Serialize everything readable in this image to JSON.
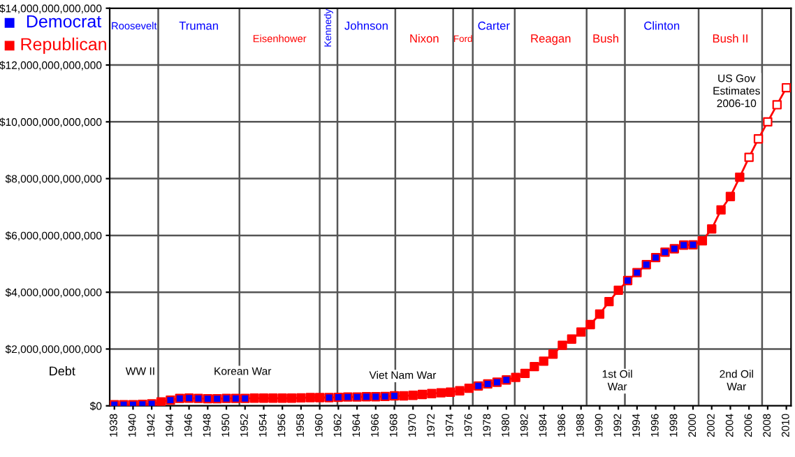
{
  "chart_data": {
    "type": "line",
    "ylabel": "Debt",
    "x": [
      1938,
      1939,
      1940,
      1941,
      1942,
      1943,
      1944,
      1945,
      1946,
      1947,
      1948,
      1949,
      1950,
      1951,
      1952,
      1953,
      1954,
      1955,
      1956,
      1957,
      1958,
      1959,
      1960,
      1961,
      1962,
      1963,
      1964,
      1965,
      1966,
      1967,
      1968,
      1969,
      1970,
      1971,
      1972,
      1973,
      1974,
      1975,
      1976,
      1977,
      1978,
      1979,
      1980,
      1981,
      1982,
      1983,
      1984,
      1985,
      1986,
      1987,
      1988,
      1989,
      1990,
      1991,
      1992,
      1993,
      1994,
      1995,
      1996,
      1997,
      1998,
      1999,
      2000,
      2001,
      2002,
      2003,
      2004,
      2005,
      2006,
      2007,
      2008,
      2009,
      2010
    ],
    "series": [
      {
        "color": "#ff0000",
        "marker": "none",
        "values": [
          40000000000,
          40000000000,
          40000000000,
          50000000000,
          70000000000,
          140000000000,
          200000000000,
          260000000000,
          270000000000,
          260000000000,
          250000000000,
          250000000000,
          260000000000,
          260000000000,
          260000000000,
          270000000000,
          270000000000,
          270000000000,
          270000000000,
          270000000000,
          280000000000,
          290000000000,
          290000000000,
          290000000000,
          300000000000,
          310000000000,
          310000000000,
          320000000000,
          320000000000,
          330000000000,
          350000000000,
          350000000000,
          370000000000,
          400000000000,
          430000000000,
          460000000000,
          480000000000,
          530000000000,
          620000000000,
          700000000000,
          770000000000,
          830000000000,
          910000000000,
          1000000000000,
          1140000000000,
          1380000000000,
          1570000000000,
          1820000000000,
          2130000000000,
          2350000000000,
          2600000000000,
          2860000000000,
          3230000000000,
          3670000000000,
          4070000000000,
          4410000000000,
          4690000000000,
          4970000000000,
          5220000000000,
          5410000000000,
          5530000000000,
          5660000000000,
          5670000000000,
          5810000000000,
          6230000000000,
          6900000000000,
          7370000000000,
          8050000000000,
          8750000000000,
          9400000000000,
          10000000000000,
          10600000000000,
          11200000000000
        ]
      },
      {
        "type": "scatter",
        "name": "Democrat",
        "color": "#0000ff",
        "marker": "square",
        "values": [
          40000000000,
          40000000000,
          40000000000,
          50000000000,
          70000000000,
          null,
          200000000000,
          260000000000,
          270000000000,
          260000000000,
          250000000000,
          250000000000,
          260000000000,
          260000000000,
          260000000000,
          null,
          null,
          null,
          null,
          null,
          null,
          null,
          null,
          290000000000,
          300000000000,
          310000000000,
          310000000000,
          320000000000,
          320000000000,
          330000000000,
          350000000000,
          null,
          null,
          null,
          null,
          null,
          null,
          null,
          null,
          700000000000,
          770000000000,
          830000000000,
          910000000000,
          null,
          null,
          null,
          null,
          null,
          null,
          null,
          null,
          null,
          null,
          null,
          null,
          4410000000000,
          4690000000000,
          4970000000000,
          5220000000000,
          5410000000000,
          5530000000000,
          5660000000000,
          5670000000000,
          null,
          null,
          null,
          null,
          null,
          null,
          null,
          null,
          null,
          null
        ]
      },
      {
        "type": "scatter",
        "name": "Republican",
        "color": "#ff0000",
        "marker": "square",
        "values": [
          null,
          null,
          null,
          null,
          null,
          140000000000,
          null,
          null,
          null,
          null,
          null,
          null,
          null,
          null,
          null,
          270000000000,
          270000000000,
          270000000000,
          270000000000,
          270000000000,
          280000000000,
          290000000000,
          290000000000,
          null,
          null,
          null,
          null,
          null,
          null,
          null,
          null,
          350000000000,
          370000000000,
          400000000000,
          430000000000,
          460000000000,
          480000000000,
          530000000000,
          620000000000,
          null,
          null,
          null,
          null,
          1000000000000,
          1140000000000,
          1380000000000,
          1570000000000,
          1820000000000,
          2130000000000,
          2350000000000,
          2600000000000,
          2860000000000,
          3230000000000,
          3670000000000,
          4070000000000,
          null,
          null,
          null,
          null,
          null,
          null,
          null,
          null,
          5810000000000,
          6230000000000,
          6900000000000,
          7370000000000,
          8050000000000,
          null,
          null,
          null,
          null,
          null
        ]
      },
      {
        "type": "scatter",
        "color": "#ff0000",
        "colors": [
          "#ffffff",
          "#ffffff",
          "#ffffff",
          "#ffffff",
          "#ffffff"
        ],
        "marker": "square",
        "x": [
          2006,
          2007,
          2008,
          2009,
          2010
        ],
        "values": [
          8750000000000,
          9400000000000,
          10000000000000,
          10600000000000,
          11200000000000
        ]
      }
    ],
    "xlim": [
      1937.5,
      2010.5
    ],
    "xticks": [
      1938,
      1940,
      1942,
      1944,
      1946,
      1948,
      1950,
      1952,
      1954,
      1956,
      1958,
      1960,
      1962,
      1964,
      1966,
      1968,
      1970,
      1972,
      1974,
      1976,
      1978,
      1980,
      1982,
      1984,
      1986,
      1988,
      1990,
      1992,
      1994,
      1996,
      1998,
      2000,
      2002,
      2004,
      2006,
      2008,
      2010
    ],
    "ylim": [
      0,
      14000000000000
    ],
    "yticks": [
      {
        "value": 0,
        "label": "$0"
      },
      {
        "value": 2000000000000,
        "label": "$2,000,000,000,000"
      },
      {
        "value": 4000000000000,
        "label": "$4,000,000,000,000"
      },
      {
        "value": 6000000000000,
        "label": "$6,000,000,000,000"
      },
      {
        "value": 8000000000000,
        "label": "$8,000,000,000,000"
      },
      {
        "value": 10000000000000,
        "label": "$10,000,000,000,000"
      },
      {
        "value": 12000000000000,
        "label": "$12,000,000,000,000"
      },
      {
        "value": 14000000000000,
        "label": "$14,000,000,000,000"
      }
    ],
    "grid": "y",
    "legend": "top left",
    "ref_lines": [
      {
        "axis": "x",
        "value": 1942.7,
        "label": "Roosevelt",
        "color": "#555555"
      },
      {
        "axis": "x",
        "value": 1951.4,
        "label": "Truman",
        "color": "#555555"
      },
      {
        "axis": "x",
        "value": 1960.0,
        "label": "Eisenhower",
        "color": "#555555"
      },
      {
        "axis": "x",
        "value": 1961.9,
        "label": "Kennedy",
        "color": "#555555"
      },
      {
        "axis": "x",
        "value": 1968.1,
        "label": "Johnson",
        "color": "#555555"
      },
      {
        "axis": "x",
        "value": 1974.3,
        "label": "Nixon",
        "color": "#555555"
      },
      {
        "axis": "x",
        "value": 1976.4,
        "label": "Ford",
        "color": "#555555"
      },
      {
        "axis": "x",
        "value": 1980.9,
        "label": "Carter",
        "color": "#555555"
      },
      {
        "axis": "x",
        "value": 1988.6,
        "label": "Reagan",
        "color": "#555555"
      },
      {
        "axis": "x",
        "value": 1992.7,
        "label": "Bush",
        "color": "#555555"
      },
      {
        "axis": "x",
        "value": 2000.6,
        "label": "Clinton",
        "color": "#555555"
      },
      {
        "axis": "x",
        "value": 2007.4,
        "label": "Bush II",
        "color": "#555555"
      }
    ],
    "annotations": [
      "WW II",
      "Korean War",
      "Viet Nam War",
      "1st Oil\nWar",
      "2nd Oil\nWar",
      "US Gov\nEstimates\n2006-10"
    ]
  }
}
